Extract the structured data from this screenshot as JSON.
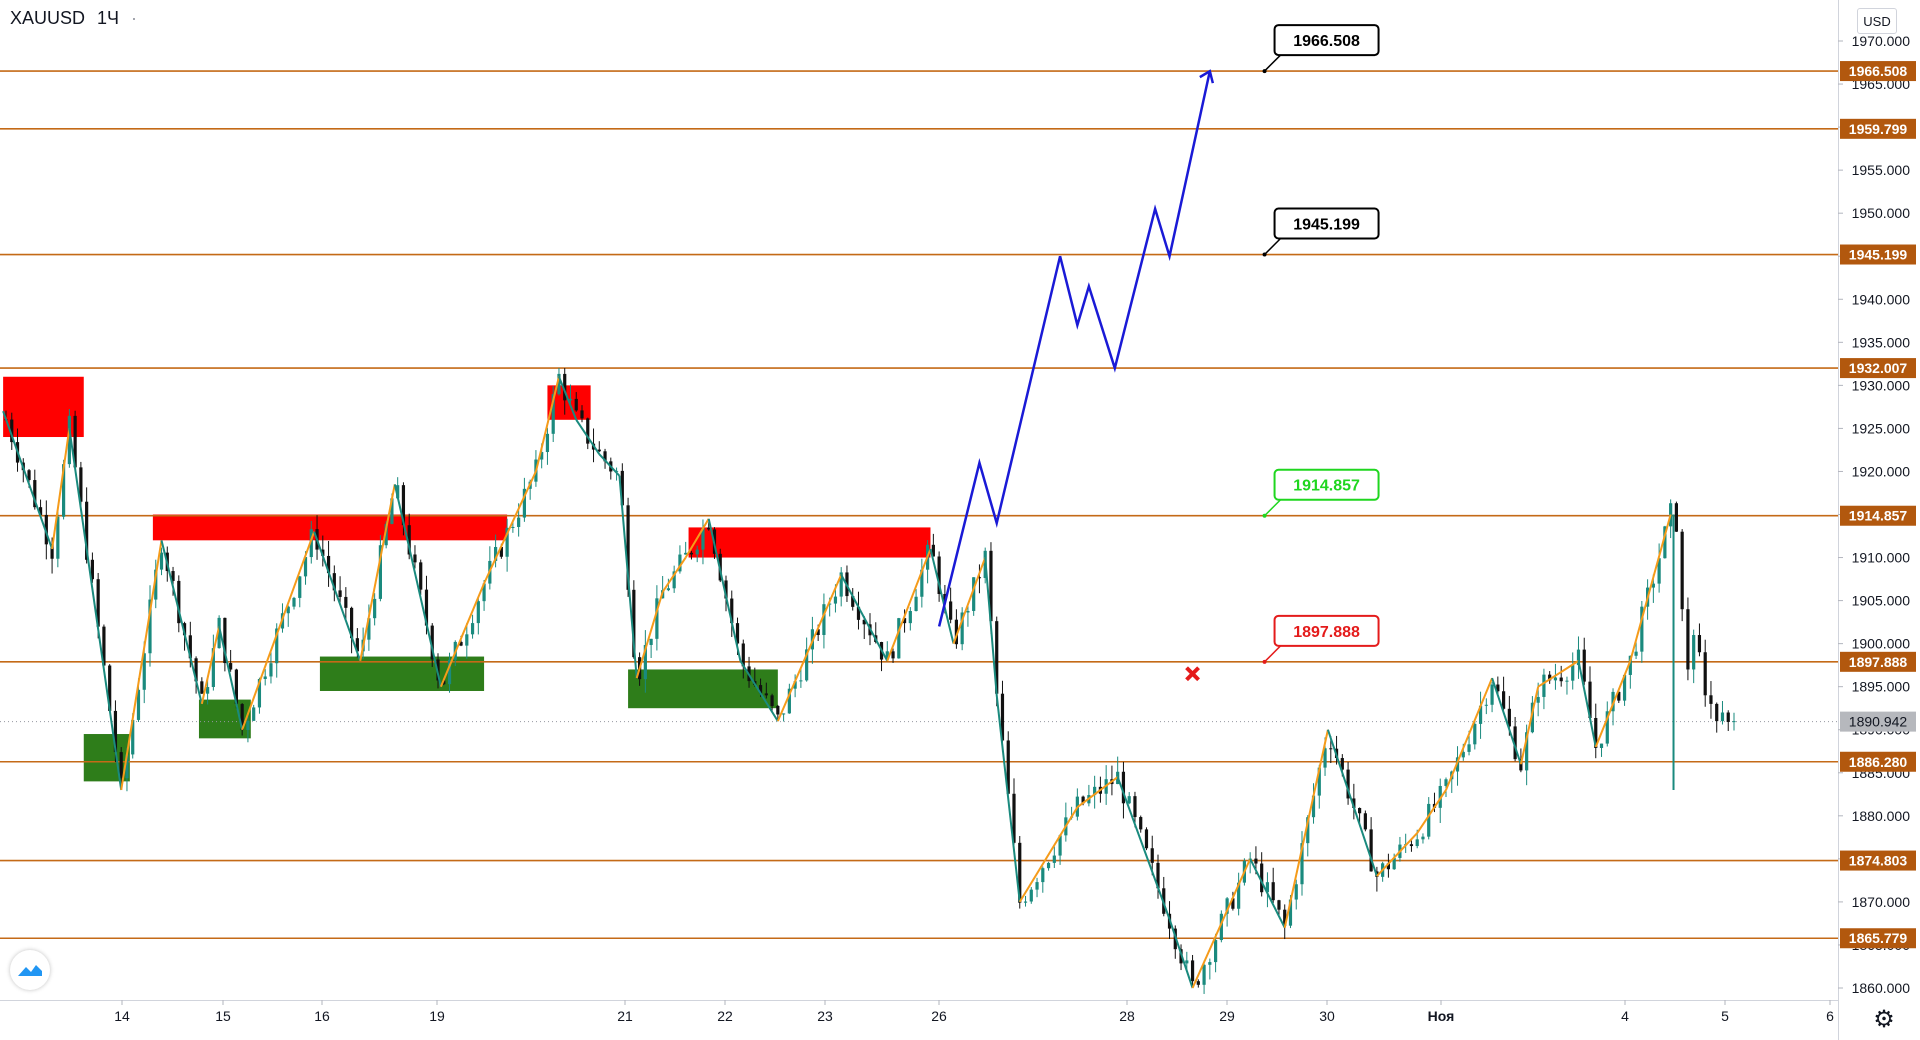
{
  "header": {
    "symbol": "XAUUSD",
    "interval": "1Ч",
    "currency": "USD"
  },
  "colors": {
    "level_line": "#c46a17",
    "level_tag": "#b2580e",
    "bull_candle": "#1a8a7e",
    "bear_candle": "#111111",
    "zigzag_up": "#f59b1a",
    "zigzag_down": "#1a8a7e",
    "supply_zone": "#ff0000",
    "demand_zone": "#2e7d1a",
    "projection": "#1a1ad6",
    "last_price_tag": "#b6b8bd"
  },
  "icons": {
    "logo": "tradingview-logo-icon",
    "settings": "gear-icon"
  },
  "chart_data": {
    "type": "candlestick",
    "title": "XAUUSD, 1Ч",
    "ylim": [
      1858,
      1978
    ],
    "y_ticks": [
      "1860.000",
      "1865.000",
      "1870.000",
      "1875.000",
      "1880.000",
      "1885.000",
      "1890.000",
      "1895.000",
      "1900.000",
      "1905.000",
      "1910.000",
      "1915.000",
      "1920.000",
      "1925.000",
      "1930.000",
      "1935.000",
      "1940.000",
      "1945.000",
      "1950.000",
      "1955.000",
      "1960.000",
      "1965.000",
      "1970.000"
    ],
    "x_ticks": [
      "14",
      "15",
      "16",
      "19",
      "21",
      "22",
      "23",
      "26",
      "28",
      "29",
      "30",
      "Ноя",
      "4",
      "5",
      "6"
    ],
    "levels": [
      1966.508,
      1959.799,
      1945.199,
      1932.007,
      1914.857,
      1897.888,
      1886.28,
      1874.803,
      1865.779
    ],
    "level_labels": [
      "1966.508",
      "1959.799",
      "1945.199",
      "1932.007",
      "1914.857",
      "1897.888",
      "1886.280",
      "1874.803",
      "1865.779"
    ],
    "last_price": 1890.942,
    "last_price_label": "1890.942",
    "callouts": [
      {
        "label": "1966.508",
        "value": 1966.508,
        "style": "black"
      },
      {
        "label": "1945.199",
        "value": 1945.199,
        "style": "black"
      },
      {
        "label": "1914.857",
        "value": 1914.857,
        "style": "green"
      },
      {
        "label": "1897.888",
        "value": 1897.888,
        "style": "red"
      }
    ],
    "supply_zones": [
      {
        "x": [
          -0.5,
          13.5
        ],
        "y": [
          1924,
          1931
        ]
      },
      {
        "x": [
          25.5,
          87
        ],
        "y": [
          1912,
          1915
        ]
      },
      {
        "x": [
          94,
          101.5
        ],
        "y": [
          1926,
          1930
        ]
      },
      {
        "x": [
          118.5,
          160.5
        ],
        "y": [
          1910,
          1913.5
        ]
      }
    ],
    "demand_zones": [
      {
        "x": [
          13.5,
          21.5
        ],
        "y": [
          1884,
          1889.5
        ]
      },
      {
        "x": [
          33.5,
          42.5
        ],
        "y": [
          1889,
          1893.5
        ]
      },
      {
        "x": [
          54.5,
          83
        ],
        "y": [
          1894.5,
          1898.5
        ]
      },
      {
        "x": [
          108,
          134
        ],
        "y": [
          1892.5,
          1897
        ]
      }
    ],
    "zigzag": [
      [
        -0.5,
        1927
      ],
      [
        8,
        1911
      ],
      [
        11,
        1925
      ],
      [
        20,
        1883
      ],
      [
        27,
        1912
      ],
      [
        34,
        1893
      ],
      [
        37,
        1902
      ],
      [
        41,
        1890
      ],
      [
        53.5,
        1913
      ],
      [
        61.5,
        1898
      ],
      [
        67.5,
        1918.5
      ],
      [
        75.5,
        1895
      ],
      [
        83,
        1907
      ],
      [
        92,
        1920
      ],
      [
        96,
        1931
      ],
      [
        99,
        1926
      ],
      [
        103,
        1922
      ],
      [
        106.5,
        1919.5
      ],
      [
        109.5,
        1896
      ],
      [
        114,
        1906
      ],
      [
        118,
        1910
      ],
      [
        122,
        1914.5
      ],
      [
        127.5,
        1898
      ],
      [
        134,
        1891
      ],
      [
        145,
        1908
      ],
      [
        153,
        1898
      ],
      [
        160.5,
        1911
      ],
      [
        164.5,
        1900
      ],
      [
        170,
        1910
      ],
      [
        172,
        1894
      ],
      [
        176,
        1870
      ],
      [
        186,
        1881
      ],
      [
        193,
        1884.5
      ],
      [
        202,
        1868
      ],
      [
        206,
        1860
      ],
      [
        216,
        1875
      ],
      [
        222,
        1867
      ],
      [
        229.5,
        1890
      ],
      [
        238,
        1873
      ],
      [
        245,
        1878
      ],
      [
        250,
        1883
      ],
      [
        258,
        1896
      ],
      [
        263,
        1886
      ],
      [
        266,
        1895
      ],
      [
        273,
        1898
      ],
      [
        276,
        1888
      ],
      [
        282,
        1898
      ],
      [
        289,
        1915
      ]
    ],
    "zigzag_colors": [
      "down",
      "up",
      "down",
      "up",
      "down",
      "up",
      "down",
      "up",
      "down",
      "up",
      "down",
      "up",
      "up",
      "up",
      "down",
      "down",
      "down",
      "down",
      "up",
      "up",
      "up",
      "down",
      "down",
      "up",
      "down",
      "up",
      "down",
      "up",
      "down",
      "down",
      "up",
      "up",
      "down",
      "down",
      "up",
      "down",
      "up",
      "down",
      "up",
      "up",
      "up",
      "down",
      "up",
      "up",
      "down",
      "up",
      "up"
    ],
    "projection": [
      [
        162,
        1902
      ],
      [
        169,
        1921
      ],
      [
        172,
        1914
      ],
      [
        183,
        1945
      ],
      [
        186,
        1937
      ],
      [
        188,
        1941.5
      ],
      [
        192.5,
        1932
      ],
      [
        199.5,
        1950.5
      ],
      [
        202,
        1945
      ],
      [
        209,
        1966.5
      ]
    ],
    "sell_signal": {
      "x": 206,
      "y": 1896.5
    }
  }
}
